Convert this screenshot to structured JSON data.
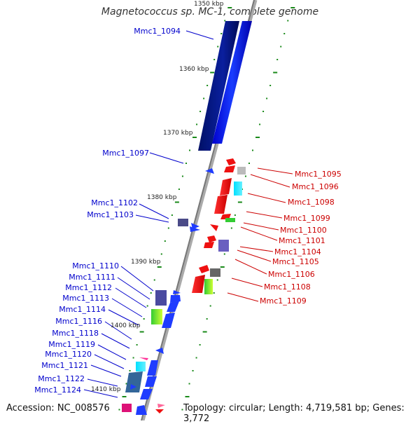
{
  "title": "Magnetococcus sp. MC-1, complete genome",
  "footer": {
    "accession": "Accession: NC_008576",
    "summary": "Topology: circular; Length: 4,719,581 bp; Genes: 3,772"
  },
  "ticks": [
    "1350 kbp",
    "1360 kbp",
    "1370 kbp",
    "1380 kbp",
    "1390 kbp",
    "1400 kbp",
    "1410 kbp"
  ],
  "genes_left": [
    "Mmc1_1094",
    "Mmc1_1097",
    "Mmc1_1102",
    "Mmc1_1103",
    "Mmc1_1110",
    "Mmc1_1111",
    "Mmc1_1112",
    "Mmc1_1113",
    "Mmc1_1114",
    "Mmc1_1116",
    "Mmc1_1118",
    "Mmc1_1119",
    "Mmc1_1120",
    "Mmc1_1121",
    "Mmc1_1122",
    "Mmc1_1124"
  ],
  "genes_right": [
    "Mmc1_1095",
    "Mmc1_1096",
    "Mmc1_1098",
    "Mmc1_1099",
    "Mmc1_1100",
    "Mmc1_1101",
    "Mmc1_1104",
    "Mmc1_1105",
    "Mmc1_1106",
    "Mmc1_1108",
    "Mmc1_1109"
  ],
  "colors": {
    "forward_label": "#0000cc",
    "reverse_label": "#cc0000",
    "backbone": "#888888",
    "tick_mark": "#1a8a1a"
  }
}
